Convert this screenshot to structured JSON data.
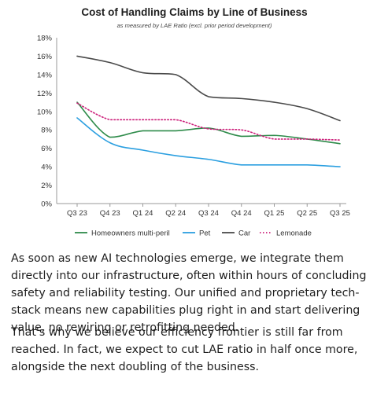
{
  "chart_data": {
    "type": "line",
    "title": "Cost of Handling Claims by Line of Business",
    "subtitle": "as measured by LAE Ratio (excl. prior period development)",
    "xlabel": "",
    "ylabel": "",
    "categories": [
      "Q3 23",
      "Q4 23",
      "Q1 24",
      "Q2 24",
      "Q3 24",
      "Q4 24",
      "Q1 25",
      "Q2 25",
      "Q3 25"
    ],
    "ylim": [
      0,
      18
    ],
    "yticks": [
      "0%",
      "2%",
      "4%",
      "6%",
      "8%",
      "10%",
      "12%",
      "14%",
      "16%",
      "18%"
    ],
    "series": [
      {
        "name": "Homeowners multi-peril",
        "color": "#2e8b4a",
        "style": "solid",
        "values": [
          11.0,
          7.2,
          7.9,
          7.9,
          8.2,
          7.3,
          7.4,
          7.0,
          6.5
        ]
      },
      {
        "name": "Pet",
        "color": "#2b9fe0",
        "style": "solid",
        "values": [
          9.3,
          6.6,
          5.8,
          5.2,
          4.8,
          4.2,
          4.2,
          4.2,
          4.0
        ]
      },
      {
        "name": "Car",
        "color": "#4a4a4a",
        "style": "solid",
        "values": [
          16.0,
          15.3,
          14.2,
          14.0,
          11.6,
          11.4,
          11.0,
          10.3,
          9.0
        ]
      },
      {
        "name": "Lemonade",
        "color": "#cc1f7a",
        "style": "dotted",
        "values": [
          10.9,
          9.1,
          9.1,
          9.1,
          8.1,
          8.0,
          7.0,
          7.0,
          6.9
        ]
      }
    ],
    "grid": false,
    "legend": "bottom"
  },
  "text": {
    "paragraph1": "As soon as new AI technologies emerge, we integrate them directly into our infrastructure, often within hours of concluding safety and reliability testing. Our unified and proprietary tech-stack means new capabilities plug right in and start delivering value, no rewiring or retrofitting needed.",
    "paragraph2": "That's why we believe our efficiency frontier is still far from reached. In fact, we expect to cut LAE ratio in half once more, alongside the next doubling of the business."
  }
}
